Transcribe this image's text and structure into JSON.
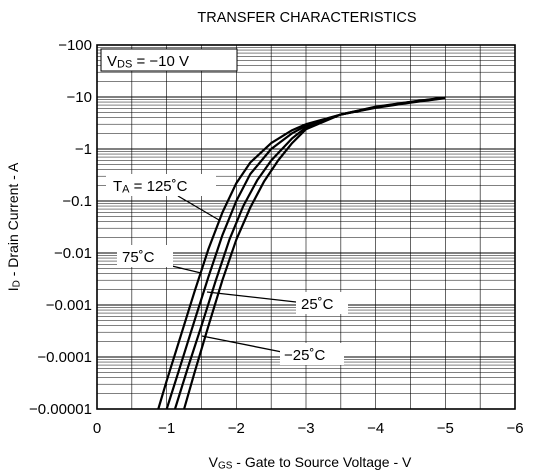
{
  "chart_data": {
    "type": "line",
    "title": "TRANSFER CHARACTERISTICS",
    "xlabel": {
      "main": "V",
      "sub": "GS",
      "rest": " - Gate to Source Voltage - V"
    },
    "ylabel": {
      "main": "I",
      "sub": "D",
      "rest": " - Drain Current - A"
    },
    "xlim": [
      0,
      -6
    ],
    "ylim": [
      -1e-05,
      -100
    ],
    "yscale": "log",
    "grid": true,
    "x_ticks": [
      {
        "value": 0,
        "label": "0"
      },
      {
        "value": -1,
        "label": "−1"
      },
      {
        "value": -2,
        "label": "−2"
      },
      {
        "value": -3,
        "label": "−3"
      },
      {
        "value": -4,
        "label": "−4"
      },
      {
        "value": -5,
        "label": "−5"
      },
      {
        "value": -6,
        "label": "−6"
      }
    ],
    "y_ticks": [
      {
        "value": -100,
        "label": "−100"
      },
      {
        "value": -10,
        "label": "−10"
      },
      {
        "value": -1,
        "label": "−1"
      },
      {
        "value": -0.1,
        "label": "−0.1"
      },
      {
        "value": -0.01,
        "label": "−0.01"
      },
      {
        "value": -0.001,
        "label": "−0.001"
      },
      {
        "value": -0.0001,
        "label": "−0.0001"
      },
      {
        "value": -1e-05,
        "label": "−0.00001"
      }
    ],
    "condition": {
      "main": "V",
      "sub": "DS",
      "rest": " = −10 V"
    },
    "series": [
      {
        "name": "T_A = 125°C",
        "label": {
          "main": "T",
          "sub": "A",
          "rest": " = 125˚C"
        },
        "x": [
          -0.88,
          -1.0,
          -1.2,
          -1.4,
          -1.6,
          -1.8,
          -2.0,
          -2.2,
          -2.5,
          -2.8,
          -3.0,
          -3.5,
          -4.0,
          -4.5,
          -5.0
        ],
        "y": [
          -1e-05,
          -3.5e-05,
          -0.00025,
          -0.0018,
          -0.012,
          -0.06,
          -0.22,
          -0.55,
          -1.3,
          -2.3,
          -3.0,
          -4.6,
          -6.2,
          -7.8,
          -9.5
        ]
      },
      {
        "name": "75°C",
        "label": {
          "main": "75˚C",
          "sub": "",
          "rest": ""
        },
        "x": [
          -1.0,
          -1.2,
          -1.4,
          -1.6,
          -1.8,
          -2.0,
          -2.2,
          -2.5,
          -2.8,
          -3.0,
          -3.5,
          -4.0,
          -4.5,
          -5.0
        ],
        "y": [
          -1e-05,
          -7e-05,
          -0.0005,
          -0.0035,
          -0.022,
          -0.1,
          -0.33,
          -1.0,
          -2.0,
          -2.8,
          -4.6,
          -6.3,
          -7.9,
          -9.6
        ]
      },
      {
        "name": "25°C",
        "label": {
          "main": "25˚C",
          "sub": "",
          "rest": ""
        },
        "x": [
          -1.12,
          -1.3,
          -1.5,
          -1.7,
          -1.9,
          -2.1,
          -2.3,
          -2.5,
          -2.8,
          -3.0,
          -3.5,
          -4.0,
          -4.5,
          -5.0
        ],
        "y": [
          -1e-05,
          -6e-05,
          -0.0004,
          -0.0028,
          -0.018,
          -0.08,
          -0.25,
          -0.6,
          -1.6,
          -2.6,
          -4.6,
          -6.4,
          -8.0,
          -9.7
        ]
      },
      {
        "name": "−25°C",
        "label": {
          "main": "−25˚C",
          "sub": "",
          "rest": ""
        },
        "x": [
          -1.25,
          -1.4,
          -1.6,
          -1.8,
          -2.0,
          -2.2,
          -2.4,
          -2.6,
          -2.8,
          -3.0,
          -3.5,
          -4.0,
          -4.5,
          -5.0
        ],
        "y": [
          -1e-05,
          -5e-05,
          -0.0004,
          -0.003,
          -0.018,
          -0.075,
          -0.24,
          -0.6,
          -1.3,
          -2.4,
          -4.6,
          -6.5,
          -8.1,
          -9.8
        ]
      }
    ]
  }
}
